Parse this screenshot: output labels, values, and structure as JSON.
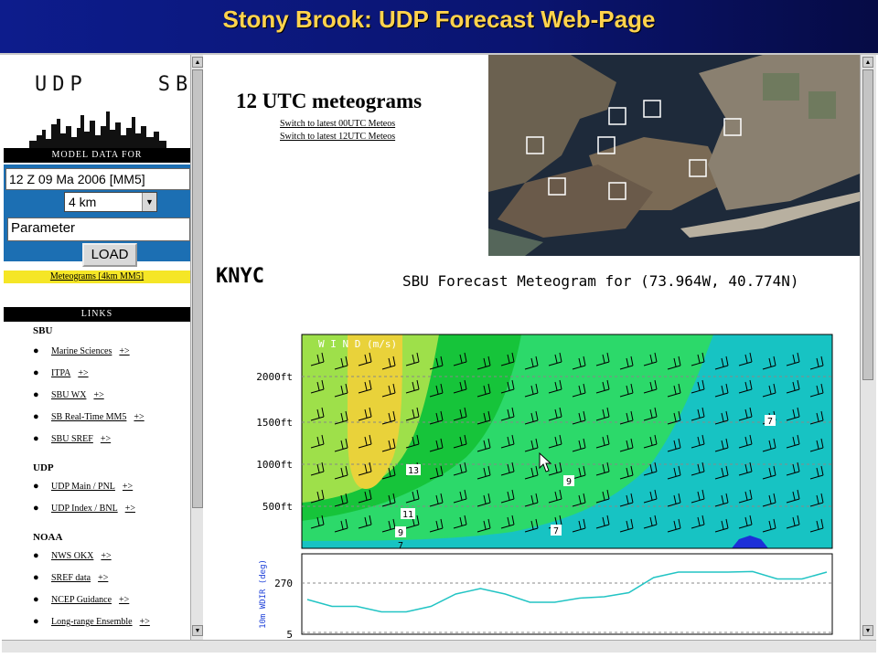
{
  "slide": {
    "title": "Stony Brook: UDP Forecast Web-Page"
  },
  "sidebar": {
    "logo_text": "UDP    SBU",
    "model_header": "MODEL DATA FOR",
    "run_value": "12 Z 09 Ma 2006 [MM5]",
    "resolution_value": "4 km",
    "parameter_value": "Parameter",
    "load_label": "LOAD",
    "meteograms_link": "Meteograms [4km MM5]",
    "links_header": "LINKS",
    "sections": [
      {
        "title": "SBU",
        "items": [
          {
            "label": "Marine Sciences",
            "more": "+>"
          },
          {
            "label": "ITPA",
            "more": "+>"
          },
          {
            "label": "SBU WX",
            "more": "+>"
          },
          {
            "label": "SB Real-Time MM5",
            "more": "+>"
          },
          {
            "label": "SBU SREF",
            "more": "+>"
          }
        ]
      },
      {
        "title": "UDP",
        "items": [
          {
            "label": "UDP Main / PNL",
            "more": "+>"
          },
          {
            "label": "UDP Index / BNL",
            "more": "+>"
          }
        ]
      },
      {
        "title": "NOAA",
        "items": [
          {
            "label": "NWS OKX",
            "more": "+>"
          },
          {
            "label": "SREF data",
            "more": "+>"
          },
          {
            "label": "NCEP Guidance",
            "more": "+>"
          },
          {
            "label": "Long-range Ensemble",
            "more": "+>"
          }
        ]
      }
    ]
  },
  "main": {
    "heading": "12 UTC meteograms",
    "switch_00": "Switch to latest 00UTC Meteos",
    "switch_12": "Switch to latest 12UTC Meteos",
    "station": "KNYC",
    "meteogram_title": "SBU Forecast Meteogram for (73.964W, 40.774N)"
  },
  "chart_data": {
    "type": "contour",
    "panels": [
      {
        "title": "W I N D (m/s)",
        "y_tick_labels": [
          "2000ft",
          "1500ft",
          "1000ft",
          "500ft"
        ],
        "contour_labels": [
          "13",
          "11",
          "9",
          "9",
          "7",
          "7",
          "7"
        ]
      },
      {
        "ylabel": "10m WDIR (deg)",
        "y_tick_labels": [
          "270",
          "5"
        ],
        "series": [
          {
            "y": [
              210,
              185,
              185,
              165,
              165,
              185,
              230,
              250,
              230,
              200,
              200,
              215,
              220,
              235,
              290,
              310,
              310,
              310,
              312,
              285,
              285,
              310
            ]
          }
        ]
      }
    ]
  },
  "colors": {
    "title_yellow": "#ffd34d",
    "slide_blue": "#0d1c8c",
    "panel_blue": "#1c6fb3",
    "menu_yellow": "#f5e626",
    "wdir_line": "#22c4c4"
  }
}
